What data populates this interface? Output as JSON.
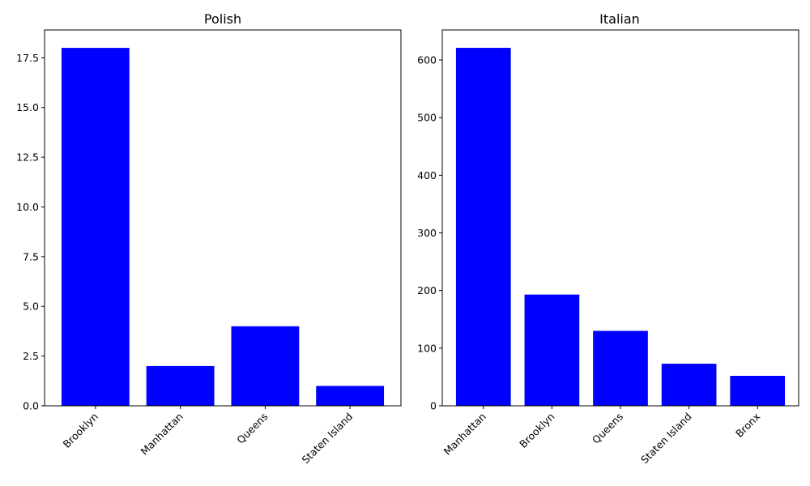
{
  "chart_data": [
    {
      "type": "bar",
      "title": "Polish",
      "xlabel": "",
      "ylabel": "",
      "categories": [
        "Brooklyn",
        "Manhattan",
        "Queens",
        "Staten Island"
      ],
      "values": [
        18,
        2,
        4,
        1
      ],
      "ylim": [
        0,
        18.9
      ],
      "yticks": [
        "0.0",
        "2.5",
        "5.0",
        "7.5",
        "10.0",
        "12.5",
        "15.0",
        "17.5"
      ],
      "ytick_values": [
        0,
        2.5,
        5,
        7.5,
        10,
        12.5,
        15,
        17.5
      ],
      "bar_color": "#0000ff",
      "grid": false,
      "x_tick_rotation": 45
    },
    {
      "type": "bar",
      "title": "Italian",
      "xlabel": "",
      "ylabel": "",
      "categories": [
        "Manhattan",
        "Brooklyn",
        "Queens",
        "Staten Island",
        "Bronx"
      ],
      "values": [
        621,
        193,
        130,
        73,
        52
      ],
      "ylim": [
        0,
        652
      ],
      "yticks": [
        "0",
        "100",
        "200",
        "300",
        "400",
        "500",
        "600"
      ],
      "ytick_values": [
        0,
        100,
        200,
        300,
        400,
        500,
        600
      ],
      "bar_color": "#0000ff",
      "grid": false,
      "x_tick_rotation": 45
    }
  ]
}
